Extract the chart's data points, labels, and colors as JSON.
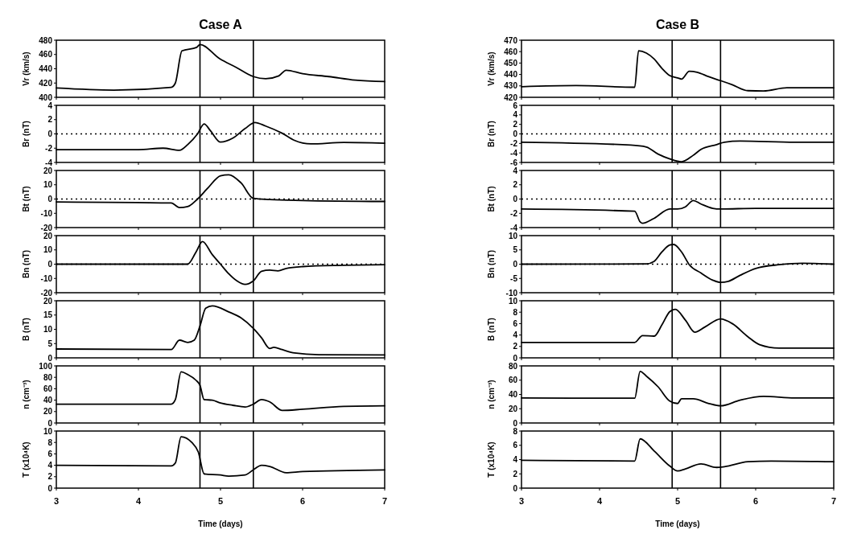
{
  "chart_data": [
    {
      "type": "line",
      "title": "Case A",
      "ylabel": "Vr (km/s)",
      "x": [
        3,
        3.7,
        4.4,
        4.45,
        4.53,
        4.71,
        4.75,
        4.99,
        5.19,
        5.4,
        5.55,
        5.71,
        5.8,
        6,
        6.32,
        6.64,
        7
      ],
      "values": [
        413,
        410,
        414,
        420,
        465,
        470,
        474,
        454,
        442,
        429,
        426,
        430,
        438,
        433,
        429,
        424,
        422
      ],
      "color": "#000000",
      "xlim": [
        3,
        7
      ],
      "xticks": [
        3,
        4,
        5,
        6,
        7
      ],
      "ylim": [
        400,
        480
      ],
      "yticks": [
        400,
        420,
        440,
        460,
        480
      ],
      "tick_labels": "y",
      "ref_lines": [
        {
          "axis": "x",
          "value": 4.75
        },
        {
          "axis": "x",
          "value": 5.4
        }
      ]
    },
    {
      "type": "line",
      "ylabel": "Br (nT)",
      "x": [
        3,
        4,
        4.3,
        4.5,
        4.6,
        4.72,
        4.8,
        4.88,
        5,
        5.15,
        5.3,
        5.42,
        5.55,
        5.75,
        5.9,
        6.1,
        6.5,
        7
      ],
      "values": [
        -2.2,
        -2.2,
        -2,
        -2.3,
        -1.5,
        0,
        1.4,
        0.4,
        -1.15,
        -0.6,
        0.75,
        1.6,
        1.1,
        0.1,
        -0.9,
        -1.4,
        -1.2,
        -1.3
      ],
      "color": "#000000",
      "xlim": [
        3,
        7
      ],
      "xticks": [
        3,
        4,
        5,
        6,
        7
      ],
      "ylim": [
        -4,
        4
      ],
      "yticks": [
        -4,
        -2,
        0,
        2,
        4
      ],
      "tick_labels": "y",
      "ref_lines": [
        {
          "axis": "x",
          "value": 4.75
        },
        {
          "axis": "x",
          "value": 5.4
        },
        {
          "axis": "y",
          "value": 0,
          "line_style": "dotted"
        }
      ]
    },
    {
      "type": "line",
      "ylabel": "Bt (nT)",
      "x": [
        3,
        4.4,
        4.5,
        4.6,
        4.72,
        4.85,
        5,
        5.1,
        5.25,
        5.4,
        5.6,
        6,
        7
      ],
      "values": [
        -2,
        -2.8,
        -6,
        -5.3,
        0,
        8,
        16.3,
        17,
        11.3,
        0.5,
        -0.3,
        -1,
        -1.7
      ],
      "color": "#000000",
      "xlim": [
        3,
        7
      ],
      "xticks": [
        3,
        4,
        5,
        6,
        7
      ],
      "ylim": [
        -20,
        20
      ],
      "yticks": [
        -20,
        -10,
        0,
        10,
        20
      ],
      "tick_labels": "y",
      "ref_lines": [
        {
          "axis": "x",
          "value": 4.75
        },
        {
          "axis": "x",
          "value": 5.4
        },
        {
          "axis": "y",
          "value": 0,
          "line_style": "dotted"
        }
      ]
    },
    {
      "type": "line",
      "ylabel": "Bn (nT)",
      "x": [
        3,
        4.6,
        4.7,
        4.78,
        4.9,
        5,
        5.1,
        5.2,
        5.3,
        5.4,
        5.5,
        5.6,
        5.7,
        5.8,
        6,
        6.5,
        7
      ],
      "values": [
        0,
        0,
        8.3,
        15.8,
        6.7,
        0,
        -6.7,
        -11.7,
        -14.2,
        -11.7,
        -5,
        -4.2,
        -4.7,
        -3,
        -1.7,
        -0.8,
        -0.3
      ],
      "color": "#000000",
      "xlim": [
        3,
        7
      ],
      "xticks": [
        3,
        4,
        5,
        6,
        7
      ],
      "ylim": [
        -20,
        20
      ],
      "yticks": [
        -20,
        -10,
        0,
        10,
        20
      ],
      "tick_labels": "y",
      "ref_lines": [
        {
          "axis": "x",
          "value": 4.75
        },
        {
          "axis": "x",
          "value": 5.4
        },
        {
          "axis": "y",
          "value": 0,
          "line_style": "dotted"
        }
      ]
    },
    {
      "type": "line",
      "ylabel": "B (nT)",
      "x": [
        3,
        4.4,
        4.5,
        4.6,
        4.68,
        4.75,
        4.82,
        4.9,
        5.1,
        5.25,
        5.4,
        5.5,
        5.6,
        5.65,
        5.75,
        5.9,
        6.2,
        7
      ],
      "values": [
        3.1,
        2.9,
        6.2,
        5.4,
        6.2,
        11.2,
        17.4,
        18.2,
        16.1,
        14,
        10.3,
        7,
        3.3,
        3.7,
        2.9,
        1.7,
        1.1,
        1
      ],
      "color": "#000000",
      "xlim": [
        3,
        7
      ],
      "xticks": [
        3,
        4,
        5,
        6,
        7
      ],
      "ylim": [
        0,
        20
      ],
      "yticks": [
        0,
        5,
        10,
        15,
        20
      ],
      "tick_labels": "y",
      "ref_lines": [
        {
          "axis": "x",
          "value": 4.75
        },
        {
          "axis": "x",
          "value": 5.4
        }
      ]
    },
    {
      "type": "line",
      "ylabel": "n (cm⁻³)",
      "x": [
        3,
        4.4,
        4.45,
        4.52,
        4.6,
        4.7,
        4.75,
        4.8,
        4.9,
        5,
        5.15,
        5.3,
        5.4,
        5.5,
        5.6,
        5.75,
        6,
        6.5,
        7
      ],
      "values": [
        33,
        33,
        41,
        89.5,
        85,
        75,
        66,
        41,
        40,
        35,
        31,
        28,
        33,
        41,
        37,
        22,
        24,
        29,
        30
      ],
      "color": "#000000",
      "xlim": [
        3,
        7
      ],
      "xticks": [
        3,
        4,
        5,
        6,
        7
      ],
      "ylim": [
        0,
        100
      ],
      "yticks": [
        0,
        20,
        40,
        60,
        80,
        100
      ],
      "tick_labels": "y",
      "ref_lines": [
        {
          "axis": "x",
          "value": 4.75
        },
        {
          "axis": "x",
          "value": 5.4
        }
      ]
    },
    {
      "type": "line",
      "ylabel": "T (x10⁴K)",
      "xlabel": "Time (days)",
      "x": [
        3,
        4.4,
        4.45,
        4.52,
        4.65,
        4.73,
        4.8,
        5,
        5.1,
        5.3,
        5.4,
        5.5,
        5.6,
        5.8,
        6,
        7
      ],
      "values": [
        4,
        3.9,
        4.4,
        9,
        8,
        6.3,
        2.5,
        2.3,
        2.1,
        2.3,
        3.2,
        4,
        3.8,
        2.7,
        2.9,
        3.2
      ],
      "color": "#000000",
      "xlim": [
        3,
        7
      ],
      "xticks": [
        3,
        4,
        5,
        6,
        7
      ],
      "ylim": [
        0,
        10
      ],
      "yticks": [
        0,
        2,
        4,
        6,
        8,
        10
      ],
      "ref_lines": [
        {
          "axis": "x",
          "value": 4.75
        },
        {
          "axis": "x",
          "value": 5.4
        }
      ]
    },
    {
      "type": "line",
      "title": "Case B",
      "ylabel": "Vr (km/s)",
      "x": [
        3,
        3.7,
        4.45,
        4.5,
        4.6,
        4.7,
        4.8,
        4.9,
        5,
        5.05,
        5.15,
        5.25,
        5.4,
        5.55,
        5.7,
        5.9,
        6.1,
        6.4,
        7
      ],
      "values": [
        429.3,
        430.3,
        428.8,
        460.7,
        458.7,
        453.5,
        445.3,
        439,
        437,
        436,
        442.8,
        442,
        438,
        434.6,
        431,
        425.8,
        425.6,
        428.4,
        428.4
      ],
      "color": "#000000",
      "xlim": [
        3,
        7
      ],
      "xticks": [
        3,
        4,
        5,
        6,
        7
      ],
      "ylim": [
        420,
        470
      ],
      "yticks": [
        420,
        430,
        440,
        450,
        460,
        470
      ],
      "tick_labels": "y",
      "ref_lines": [
        {
          "axis": "x",
          "value": 4.93
        },
        {
          "axis": "x",
          "value": 5.55
        }
      ]
    },
    {
      "type": "line",
      "ylabel": "Br (nT)",
      "x": [
        3,
        4.4,
        4.6,
        4.75,
        4.9,
        5.05,
        5.2,
        5.3,
        5.5,
        5.6,
        5.8,
        6.5,
        7
      ],
      "values": [
        -1.75,
        -2.35,
        -2.75,
        -4.25,
        -5.25,
        -5.85,
        -4.5,
        -3.25,
        -2.25,
        -1.75,
        -1.5,
        -1.75,
        -1.75
      ],
      "color": "#000000",
      "xlim": [
        3,
        7
      ],
      "xticks": [
        3,
        4,
        5,
        6,
        7
      ],
      "ylim": [
        -6,
        6
      ],
      "yticks": [
        -6,
        -4,
        -2,
        0,
        2,
        4,
        6
      ],
      "tick_labels": "y",
      "ref_lines": [
        {
          "axis": "x",
          "value": 4.93
        },
        {
          "axis": "x",
          "value": 5.55
        },
        {
          "axis": "y",
          "value": 0,
          "line_style": "dotted"
        }
      ]
    },
    {
      "type": "line",
      "ylabel": "Bt (nT)",
      "x": [
        3,
        4.45,
        4.52,
        4.55,
        4.7,
        4.9,
        5,
        5.1,
        5.2,
        5.3,
        5.45,
        5.55,
        6,
        7
      ],
      "values": [
        -1.4,
        -1.7,
        -3.2,
        -3.4,
        -2.7,
        -1.4,
        -1.4,
        -1.1,
        -0.2,
        -0.7,
        -1.3,
        -1.4,
        -1.3,
        -1.3
      ],
      "color": "#000000",
      "xlim": [
        3,
        7
      ],
      "xticks": [
        3,
        4,
        5,
        6,
        7
      ],
      "ylim": [
        -4,
        4
      ],
      "yticks": [
        -4,
        -2,
        0,
        2,
        4
      ],
      "tick_labels": "y",
      "ref_lines": [
        {
          "axis": "x",
          "value": 4.93
        },
        {
          "axis": "x",
          "value": 5.55
        },
        {
          "axis": "y",
          "value": 0,
          "line_style": "dotted"
        }
      ]
    },
    {
      "type": "line",
      "ylabel": "Bn (nT)",
      "x": [
        3,
        4.6,
        4.7,
        4.8,
        4.9,
        4.95,
        5.05,
        5.15,
        5.3,
        5.45,
        5.55,
        5.65,
        5.8,
        6,
        6.3,
        6.6,
        7
      ],
      "values": [
        0,
        0.1,
        1,
        4.3,
        6.7,
        6.9,
        4.3,
        -0.2,
        -3.1,
        -5.6,
        -6.4,
        -6,
        -3.9,
        -1.5,
        -0.2,
        0.3,
        0
      ],
      "color": "#000000",
      "xlim": [
        3,
        7
      ],
      "xticks": [
        3,
        4,
        5,
        6,
        7
      ],
      "ylim": [
        -10,
        10
      ],
      "yticks": [
        -10,
        -5,
        0,
        5,
        10
      ],
      "tick_labels": "y",
      "ref_lines": [
        {
          "axis": "x",
          "value": 4.93
        },
        {
          "axis": "x",
          "value": 5.55
        },
        {
          "axis": "y",
          "value": 0,
          "line_style": "dotted"
        }
      ]
    },
    {
      "type": "line",
      "ylabel": "B (nT)",
      "x": [
        3,
        4.45,
        4.55,
        4.7,
        4.8,
        4.9,
        4.97,
        5.1,
        5.22,
        5.35,
        5.55,
        5.7,
        5.9,
        6.05,
        6.3,
        7
      ],
      "values": [
        2.7,
        2.7,
        3.9,
        3.8,
        5.8,
        8.1,
        8.5,
        6.6,
        4.5,
        5.4,
        6.8,
        6,
        3.7,
        2.3,
        1.7,
        1.7
      ],
      "color": "#000000",
      "xlim": [
        3,
        7
      ],
      "xticks": [
        3,
        4,
        5,
        6,
        7
      ],
      "ylim": [
        0,
        10
      ],
      "yticks": [
        0,
        2,
        4,
        6,
        8,
        10
      ],
      "tick_labels": "y",
      "ref_lines": [
        {
          "axis": "x",
          "value": 4.93
        },
        {
          "axis": "x",
          "value": 5.55
        }
      ]
    },
    {
      "type": "line",
      "ylabel": "n (cm⁻³)",
      "x": [
        3,
        4.45,
        4.52,
        4.6,
        4.75,
        4.9,
        5,
        5.05,
        5.2,
        5.4,
        5.55,
        5.8,
        6.1,
        6.5,
        7
      ],
      "values": [
        35,
        34.7,
        72.3,
        65.7,
        50.7,
        30.7,
        27.3,
        34,
        34,
        27.3,
        24,
        32,
        37.3,
        35,
        35
      ],
      "color": "#000000",
      "xlim": [
        3,
        7
      ],
      "xticks": [
        3,
        4,
        5,
        6,
        7
      ],
      "ylim": [
        0,
        80
      ],
      "yticks": [
        0,
        20,
        40,
        60,
        80
      ],
      "tick_labels": "y",
      "ref_lines": [
        {
          "axis": "x",
          "value": 4.93
        },
        {
          "axis": "x",
          "value": 5.55
        }
      ]
    },
    {
      "type": "line",
      "ylabel": "T (x10⁴K)",
      "xlabel": "Time (days)",
      "x": [
        3,
        4.45,
        4.52,
        4.7,
        4.9,
        5,
        5.1,
        5.3,
        5.5,
        5.6,
        5.9,
        6.2,
        7
      ],
      "values": [
        3.9,
        3.8,
        6.9,
        5.2,
        3.1,
        2.4,
        2.7,
        3.4,
        2.9,
        3,
        3.7,
        3.8,
        3.7
      ],
      "color": "#000000",
      "xlim": [
        3,
        7
      ],
      "xticks": [
        3,
        4,
        5,
        6,
        7
      ],
      "ylim": [
        0,
        8
      ],
      "yticks": [
        0,
        2,
        4,
        6,
        8
      ],
      "ref_lines": [
        {
          "axis": "x",
          "value": 4.93
        },
        {
          "axis": "x",
          "value": 5.55
        }
      ]
    }
  ]
}
